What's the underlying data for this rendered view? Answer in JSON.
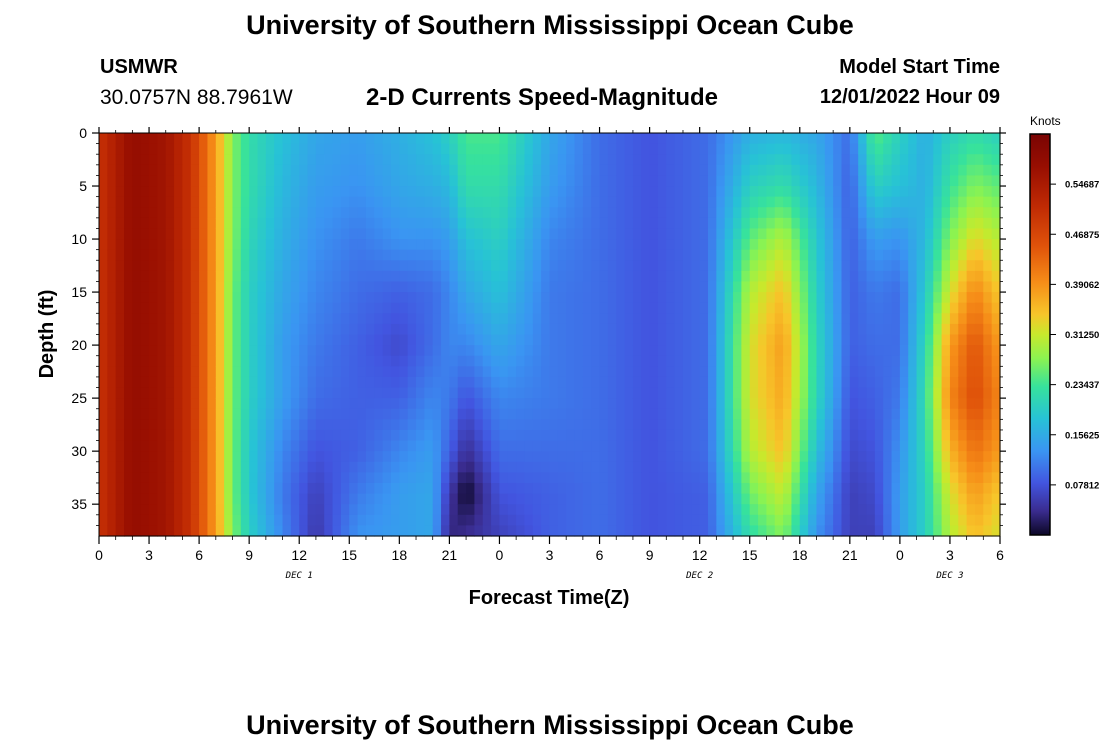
{
  "page": {
    "title": "University of Southern Mississippi Ocean Cube",
    "station_id": "USMWR",
    "station_coords": "30.0757N  88.7961W",
    "plot_title": "2-D Currents Speed-Magnitude",
    "model_start_label": "Model Start Time",
    "model_start_value": "12/01/2022 Hour 09",
    "repeat_title": "University of Southern Mississippi Ocean Cube"
  },
  "chart_data": {
    "type": "heatmap",
    "title": "2-D Currents Speed-Magnitude",
    "xlabel": "Forecast Time(Z)",
    "ylabel": "Depth (ft)",
    "colorbar_label": "Knots",
    "colorbar_ticks": [
      "0.54687",
      "0.46875",
      "0.39062",
      "0.31250",
      "0.23437",
      "0.15625",
      "0.07812"
    ],
    "colorbar_tick_values": [
      0.54687,
      0.46875,
      0.39062,
      0.3125,
      0.23437,
      0.15625,
      0.07812
    ],
    "value_range": [
      0,
      0.625
    ],
    "x_range_hours": [
      0,
      54
    ],
    "x_ticks": [
      "0",
      "3",
      "6",
      "9",
      "12",
      "15",
      "18",
      "21",
      "0",
      "3",
      "6",
      "9",
      "12",
      "15",
      "18",
      "21",
      "0",
      "3",
      "6"
    ],
    "x_tick_hours": [
      0,
      3,
      6,
      9,
      12,
      15,
      18,
      21,
      24,
      27,
      30,
      33,
      36,
      39,
      42,
      45,
      48,
      51,
      54
    ],
    "date_labels": [
      "DEC 1",
      "DEC 2",
      "DEC 3"
    ],
    "date_label_hours": [
      12,
      36,
      51
    ],
    "y_range_ft": [
      0,
      38
    ],
    "y_ticks": [
      "0",
      "5",
      "10",
      "15",
      "20",
      "25",
      "30",
      "35"
    ],
    "y_tick_values": [
      0,
      5,
      10,
      15,
      20,
      25,
      30,
      35
    ],
    "grid_hours": [
      0,
      2,
      4,
      5.5,
      7,
      8,
      9,
      11,
      13,
      15.5,
      18,
      20,
      21,
      22,
      24,
      27,
      30,
      33,
      36.5,
      39,
      41,
      43,
      45,
      46.5,
      48,
      49.5,
      51,
      52.5,
      54
    ],
    "grid_depths_ft": [
      0,
      5,
      10,
      15,
      20,
      25,
      30,
      34,
      38
    ],
    "speed_knots": [
      [
        0.5,
        0.5,
        0.5,
        0.5,
        0.5,
        0.5,
        0.5,
        0.5,
        0.5
      ],
      [
        0.58,
        0.58,
        0.58,
        0.58,
        0.58,
        0.58,
        0.58,
        0.58,
        0.58
      ],
      [
        0.56,
        0.56,
        0.56,
        0.56,
        0.56,
        0.56,
        0.56,
        0.56,
        0.56
      ],
      [
        0.5,
        0.5,
        0.5,
        0.5,
        0.5,
        0.5,
        0.5,
        0.5,
        0.5
      ],
      [
        0.38,
        0.38,
        0.38,
        0.38,
        0.38,
        0.38,
        0.38,
        0.38,
        0.38
      ],
      [
        0.27,
        0.27,
        0.27,
        0.26,
        0.26,
        0.26,
        0.26,
        0.26,
        0.27
      ],
      [
        0.22,
        0.22,
        0.21,
        0.2,
        0.2,
        0.2,
        0.19,
        0.19,
        0.2
      ],
      [
        0.18,
        0.17,
        0.16,
        0.15,
        0.14,
        0.14,
        0.12,
        0.11,
        0.12
      ],
      [
        0.15,
        0.14,
        0.13,
        0.12,
        0.11,
        0.1,
        0.08,
        0.06,
        0.05
      ],
      [
        0.14,
        0.13,
        0.11,
        0.1,
        0.09,
        0.09,
        0.09,
        0.11,
        0.13
      ],
      [
        0.16,
        0.15,
        0.13,
        0.09,
        0.07,
        0.09,
        0.12,
        0.14,
        0.14
      ],
      [
        0.18,
        0.16,
        0.13,
        0.1,
        0.1,
        0.12,
        0.14,
        0.15,
        0.15
      ],
      [
        0.2,
        0.17,
        0.14,
        0.12,
        0.12,
        0.11,
        0.09,
        0.05,
        0.03
      ],
      [
        0.24,
        0.22,
        0.18,
        0.15,
        0.12,
        0.08,
        0.04,
        0.0,
        0.04
      ],
      [
        0.24,
        0.22,
        0.2,
        0.18,
        0.15,
        0.12,
        0.1,
        0.08,
        0.06
      ],
      [
        0.15,
        0.14,
        0.12,
        0.11,
        0.11,
        0.11,
        0.1,
        0.09,
        0.09
      ],
      [
        0.1,
        0.1,
        0.1,
        0.1,
        0.1,
        0.1,
        0.1,
        0.1,
        0.1
      ],
      [
        0.08,
        0.08,
        0.08,
        0.08,
        0.08,
        0.08,
        0.08,
        0.08,
        0.08
      ],
      [
        0.1,
        0.1,
        0.1,
        0.1,
        0.1,
        0.1,
        0.1,
        0.09,
        0.09
      ],
      [
        0.16,
        0.2,
        0.25,
        0.3,
        0.32,
        0.32,
        0.3,
        0.26,
        0.22
      ],
      [
        0.17,
        0.22,
        0.3,
        0.35,
        0.38,
        0.37,
        0.35,
        0.31,
        0.27
      ],
      [
        0.15,
        0.17,
        0.19,
        0.2,
        0.21,
        0.21,
        0.18,
        0.15,
        0.13
      ],
      [
        0.1,
        0.09,
        0.09,
        0.09,
        0.09,
        0.08,
        0.07,
        0.06,
        0.06
      ],
      [
        0.25,
        0.2,
        0.14,
        0.11,
        0.1,
        0.09,
        0.08,
        0.07,
        0.06
      ],
      [
        0.2,
        0.18,
        0.13,
        0.1,
        0.1,
        0.11,
        0.13,
        0.14,
        0.14
      ],
      [
        0.16,
        0.16,
        0.17,
        0.19,
        0.21,
        0.22,
        0.21,
        0.2,
        0.2
      ],
      [
        0.2,
        0.23,
        0.27,
        0.32,
        0.38,
        0.4,
        0.36,
        0.32,
        0.3
      ],
      [
        0.22,
        0.27,
        0.33,
        0.4,
        0.45,
        0.46,
        0.42,
        0.38,
        0.35
      ],
      [
        0.2,
        0.25,
        0.3,
        0.34,
        0.38,
        0.4,
        0.38,
        0.34,
        0.32
      ]
    ]
  }
}
